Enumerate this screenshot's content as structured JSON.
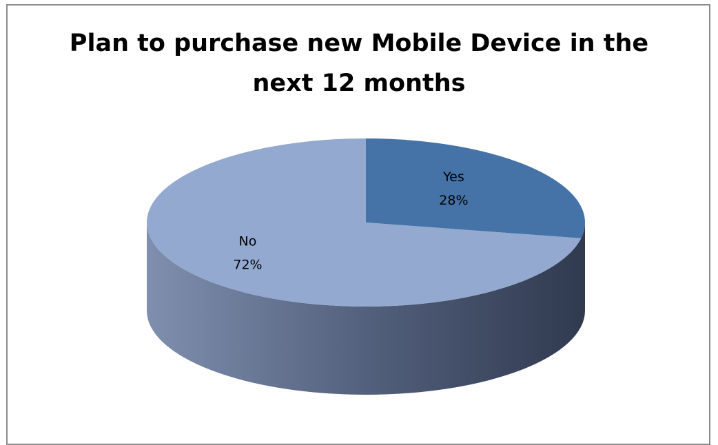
{
  "chart_data": {
    "type": "pie",
    "title_lines": [
      "Plan to purchase new Mobile Device in the",
      "next 12 months"
    ],
    "style": "3d",
    "legend": "none",
    "slices": [
      {
        "label": "Yes",
        "value": 28,
        "value_label": "28%",
        "color": "#4572a7"
      },
      {
        "label": "No",
        "value": 72,
        "value_label": "72%",
        "color": "#93a9d0"
      }
    ]
  }
}
